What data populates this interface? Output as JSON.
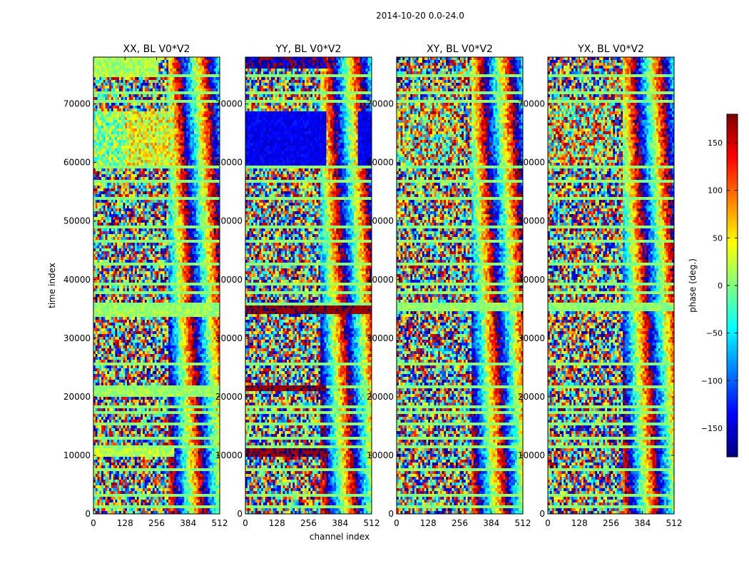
{
  "chart_data": {
    "type": "heatmap",
    "suptitle": "2014-10-20 0.0-24.0",
    "shared": {
      "xlabel": "channel index",
      "ylabel": "time index",
      "xlim": [
        0,
        512
      ],
      "ylim": [
        0,
        78000
      ],
      "xticks": [
        0,
        128,
        256,
        384,
        512
      ],
      "yticks": [
        0,
        10000,
        20000,
        30000,
        40000,
        50000,
        60000,
        70000
      ]
    },
    "colorbar": {
      "label": "phase (deg.)",
      "range": [
        -180,
        180
      ],
      "ticks": [
        150,
        100,
        50,
        0,
        -50,
        -100,
        -150
      ],
      "tick_labels": [
        "150",
        "100",
        "50",
        "0",
        "−50",
        "−100",
        "−150"
      ],
      "colormap": [
        "#00007f",
        "#0000ff",
        "#007fff",
        "#00ffff",
        "#7fff7f",
        "#ffff00",
        "#ff7f00",
        "#ff0000",
        "#7f0000"
      ]
    },
    "panels": [
      {
        "title": "XX, BL V0*V2",
        "pol": "XX",
        "bands": [
          {
            "t0": 59500,
            "t1": 68800,
            "c0": 0,
            "c1": 330,
            "phase": 40,
            "jitter": 60,
            "alt_phase": 0,
            "alt_c0": 0,
            "alt_c1": 130
          },
          {
            "t0": 74500,
            "t1": 78000,
            "c0": 0,
            "c1": 260,
            "phase": 15,
            "jitter": 25
          },
          {
            "t0": 33800,
            "t1": 35400,
            "c0": 0,
            "c1": 512,
            "phase": 10,
            "jitter": 20
          },
          {
            "t0": 20200,
            "t1": 21400,
            "c0": 0,
            "c1": 512,
            "phase": 10,
            "jitter": 20
          },
          {
            "t0": 9800,
            "t1": 11300,
            "c0": 0,
            "c1": 330,
            "phase": 20,
            "jitter": 30
          }
        ]
      },
      {
        "title": "YY, BL V0*V2",
        "pol": "YY",
        "bands": [
          {
            "t0": 59500,
            "t1": 68800,
            "c0": 0,
            "c1": 330,
            "phase": -140,
            "jitter": 15
          },
          {
            "t0": 59500,
            "t1": 68800,
            "c0": 460,
            "c1": 512,
            "phase": -140,
            "jitter": 15
          },
          {
            "t0": 76000,
            "t1": 78000,
            "c0": 0,
            "c1": 330,
            "phase": -165,
            "jitter": 40
          },
          {
            "t0": 34200,
            "t1": 35400,
            "c0": 0,
            "c1": 512,
            "phase": 175,
            "jitter": 10
          },
          {
            "t0": 20800,
            "t1": 21700,
            "c0": 0,
            "c1": 330,
            "phase": 175,
            "jitter": 10
          },
          {
            "t0": 9800,
            "t1": 11000,
            "c0": 0,
            "c1": 330,
            "phase": 175,
            "jitter": 15
          }
        ]
      },
      {
        "title": "XY, BL V0*V2",
        "pol": "XY",
        "bands": [
          {
            "t0": 60000,
            "t1": 70000,
            "c0": 0,
            "c1": 260,
            "phase": 40,
            "jitter": 140
          },
          {
            "t0": 34800,
            "t1": 35400,
            "c0": 0,
            "c1": 512,
            "phase": 5,
            "jitter": 20
          },
          {
            "t0": 59000,
            "t1": 59500,
            "c0": 0,
            "c1": 512,
            "phase": 5,
            "jitter": 20
          }
        ]
      },
      {
        "title": "YX, BL V0*V2",
        "pol": "YX",
        "bands": [
          {
            "t0": 60000,
            "t1": 70000,
            "c0": 0,
            "c1": 260,
            "phase": 40,
            "jitter": 140
          },
          {
            "t0": 34800,
            "t1": 35400,
            "c0": 0,
            "c1": 512,
            "phase": 5,
            "jitter": 20
          },
          {
            "t0": 59000,
            "t1": 59500,
            "c0": 0,
            "c1": 512,
            "phase": 5,
            "jitter": 20
          }
        ]
      }
    ],
    "flag_rows": [
      1600,
      3200,
      7800,
      11800,
      13200,
      15800,
      17500,
      18600,
      22000,
      26000,
      36200,
      38000,
      39300,
      43000,
      47000,
      49200,
      54000,
      57000,
      59300,
      70500,
      72000,
      75200
    ]
  }
}
